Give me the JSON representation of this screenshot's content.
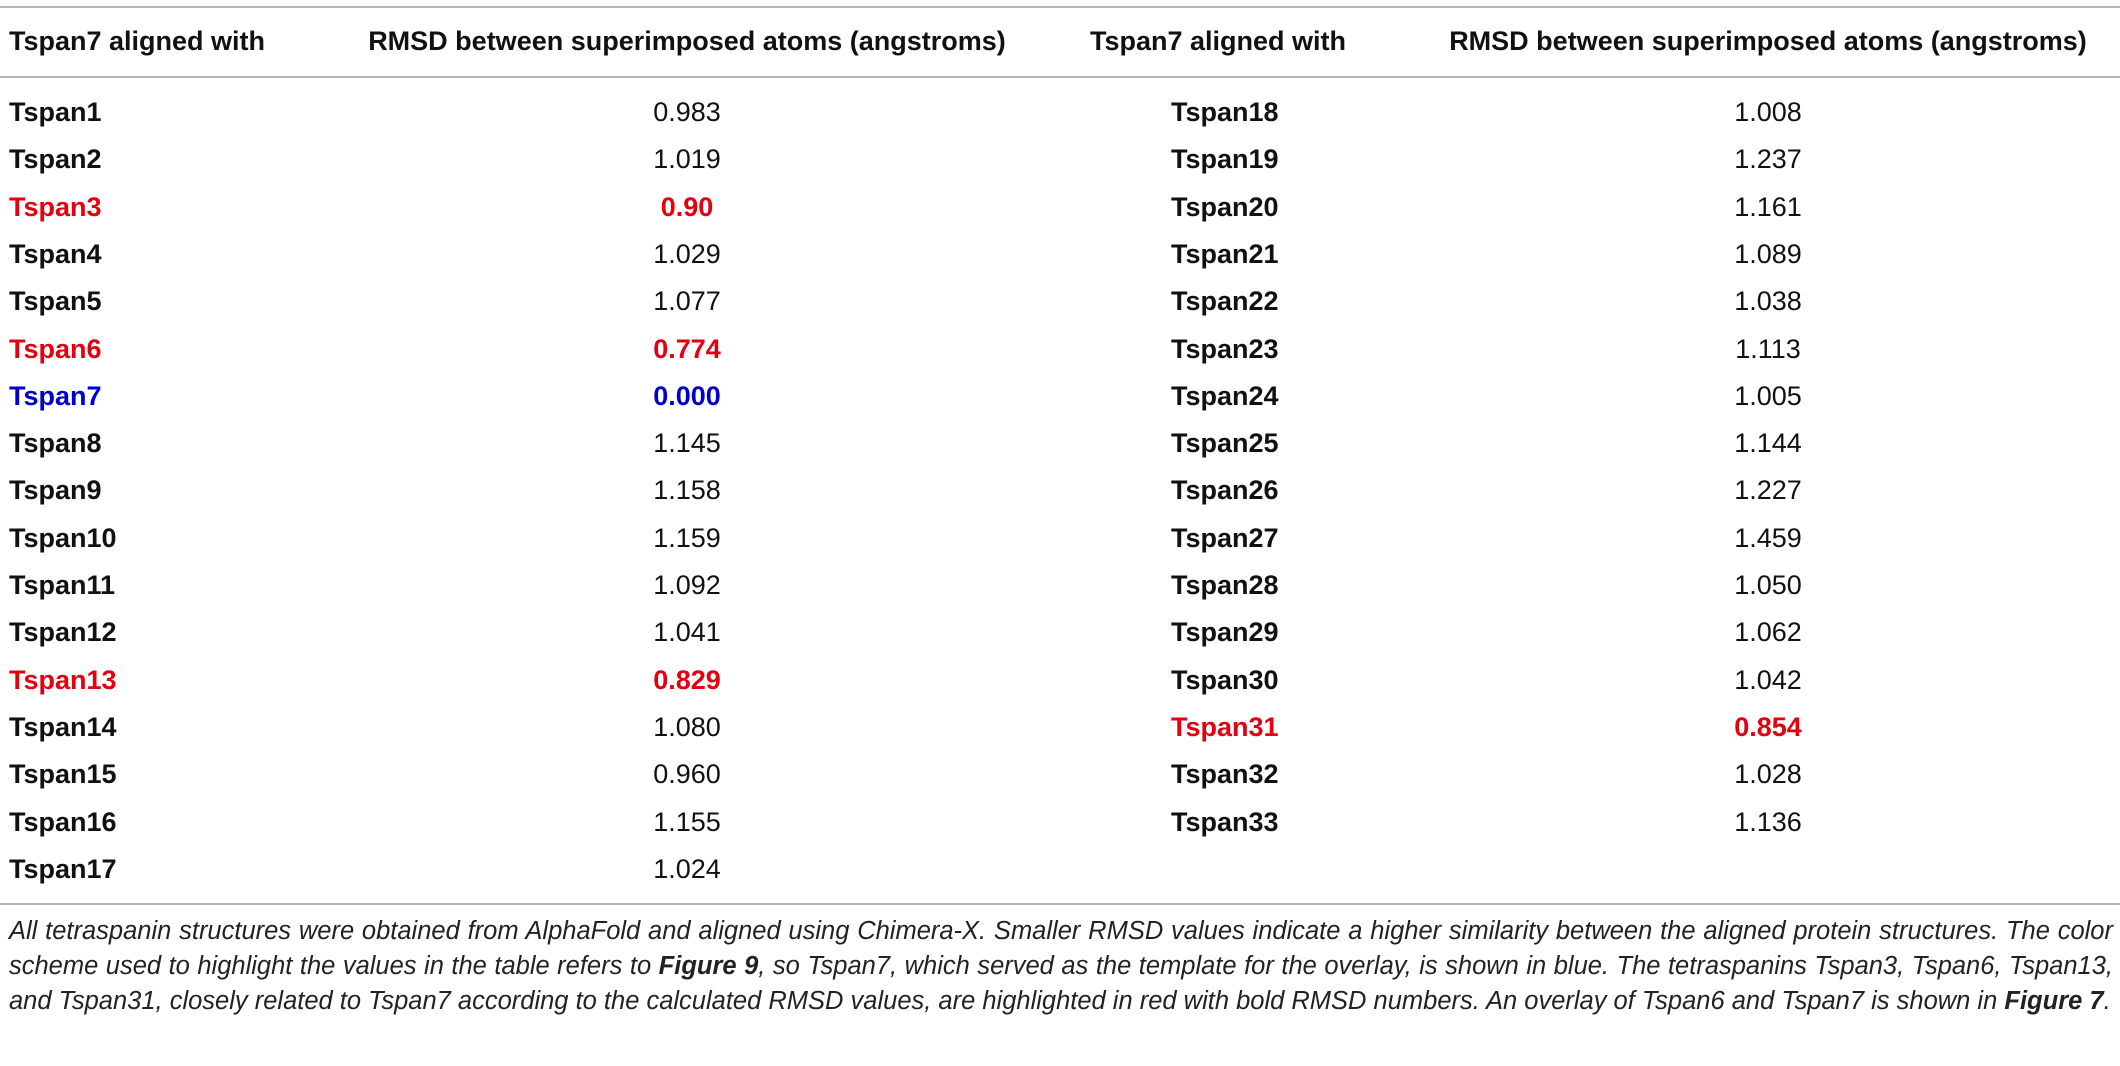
{
  "table": {
    "columns": [
      {
        "header_name": "Tspan7 aligned with",
        "header_value": "RMSD between superimposed atoms (angstroms)",
        "rows": [
          {
            "name": "Tspan1",
            "value": "0.983"
          },
          {
            "name": "Tspan2",
            "value": "1.019"
          },
          {
            "name": "Tspan3",
            "value": "0.90",
            "color": "#e3000f"
          },
          {
            "name": "Tspan4",
            "value": "1.029"
          },
          {
            "name": "Tspan5",
            "value": "1.077"
          },
          {
            "name": "Tspan6",
            "value": "0.774",
            "color": "#e3000f"
          },
          {
            "name": "Tspan7",
            "value": "0.000",
            "color": "#0000cc"
          },
          {
            "name": "Tspan8",
            "value": "1.145"
          },
          {
            "name": "Tspan9",
            "value": "1.158"
          },
          {
            "name": "Tspan10",
            "value": "1.159"
          },
          {
            "name": "Tspan11",
            "value": "1.092"
          },
          {
            "name": "Tspan12",
            "value": "1.041"
          },
          {
            "name": "Tspan13",
            "value": "0.829",
            "color": "#e3000f"
          },
          {
            "name": "Tspan14",
            "value": "1.080"
          },
          {
            "name": "Tspan15",
            "value": "0.960"
          },
          {
            "name": "Tspan16",
            "value": "1.155"
          },
          {
            "name": "Tspan17",
            "value": "1.024"
          }
        ]
      },
      {
        "header_name": "Tspan7 aligned with",
        "header_value": "RMSD between superimposed atoms (angstroms)",
        "rows": [
          {
            "name": "Tspan18",
            "value": "1.008"
          },
          {
            "name": "Tspan19",
            "value": "1.237"
          },
          {
            "name": "Tspan20",
            "value": "1.161"
          },
          {
            "name": "Tspan21",
            "value": "1.089"
          },
          {
            "name": "Tspan22",
            "value": "1.038"
          },
          {
            "name": "Tspan23",
            "value": "1.113"
          },
          {
            "name": "Tspan24",
            "value": "1.005"
          },
          {
            "name": "Tspan25",
            "value": "1.144"
          },
          {
            "name": "Tspan26",
            "value": "1.227"
          },
          {
            "name": "Tspan27",
            "value": "1.459"
          },
          {
            "name": "Tspan28",
            "value": "1.050"
          },
          {
            "name": "Tspan29",
            "value": "1.062"
          },
          {
            "name": "Tspan30",
            "value": "1.042"
          },
          {
            "name": "Tspan31",
            "value": "0.854",
            "color": "#e3000f"
          },
          {
            "name": "Tspan32",
            "value": "1.028"
          },
          {
            "name": "Tspan33",
            "value": "1.136"
          }
        ]
      }
    ],
    "caption": [
      "All tetraspanin structures were obtained from AlphaFold and aligned using Chimera-X. Smaller RMSD values indicate a higher similarity between the aligned protein structures. The color scheme used to highlight the values in the table refers to ",
      "Figure 9",
      ", so Tspan7, which served as the template for the overlay, is shown in blue. The tetraspanins Tspan3, Tspan6, Tspan13, and Tspan31, closely related to Tspan7 according to the calculated RMSD values, are highlighted in red with bold RMSD numbers. An overlay of Tspan6 and Tspan7 is shown in ",
      "Figure 7",
      "."
    ]
  }
}
